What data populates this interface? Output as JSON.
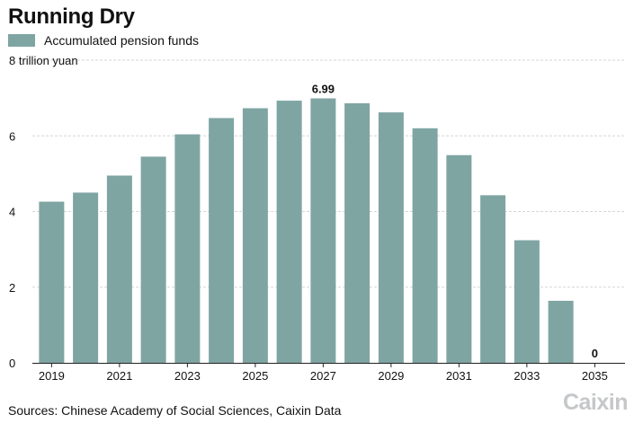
{
  "chart_data": {
    "type": "bar",
    "title": "Running Dry",
    "legend": [
      {
        "name": "Accumulated pension funds",
        "color": "#7fa5a3"
      }
    ],
    "unit_label": "8 trillion yuan",
    "categories": [
      "2019",
      "2020",
      "2021",
      "2022",
      "2023",
      "2024",
      "2025",
      "2026",
      "2027",
      "2028",
      "2029",
      "2030",
      "2031",
      "2032",
      "2033",
      "2034",
      "2035"
    ],
    "series": [
      {
        "name": "Accumulated pension funds",
        "color": "#7fa5a3",
        "values": [
          4.26,
          4.5,
          4.95,
          5.45,
          6.04,
          6.47,
          6.73,
          6.93,
          6.99,
          6.86,
          6.62,
          6.2,
          5.49,
          4.43,
          3.24,
          1.64,
          0
        ]
      }
    ],
    "data_labels": [
      {
        "category": "2027",
        "text": "6.99"
      },
      {
        "category": "2035",
        "text": "0"
      }
    ],
    "x_tick_labels": [
      "2019",
      "2021",
      "2023",
      "2025",
      "2027",
      "2029",
      "2031",
      "2033",
      "2035"
    ],
    "y_tick_labels": [
      "0",
      "2",
      "4",
      "6"
    ],
    "ylim": [
      0,
      8
    ],
    "grid": true,
    "legend_position": "top-left"
  },
  "footer": {
    "source": "Sources: Chinese Academy of Social Sciences, Caixin Data",
    "logo": "Caixin"
  }
}
